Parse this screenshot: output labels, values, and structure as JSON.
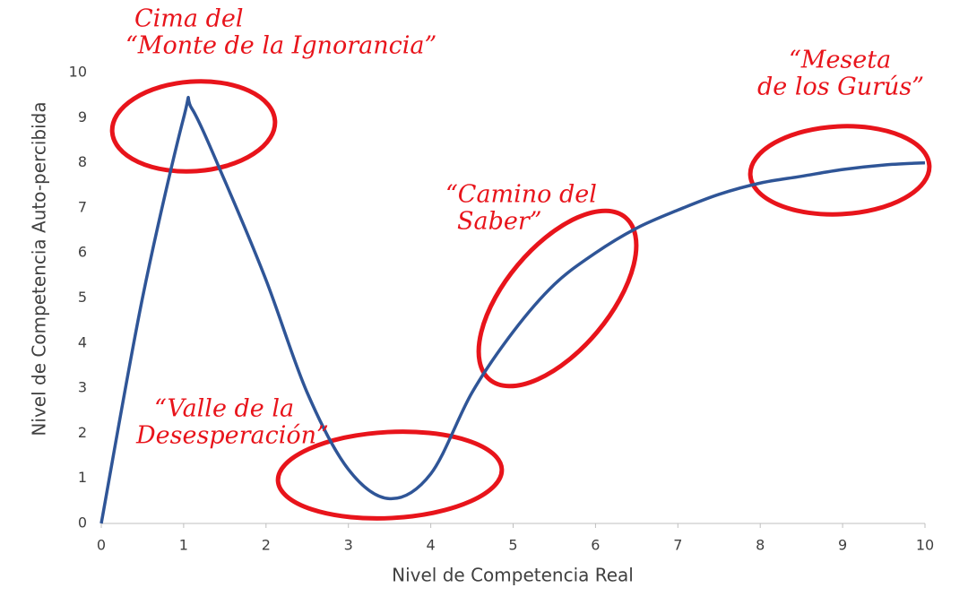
{
  "chart_data": {
    "type": "line",
    "x_label": "Nivel de Competencia Real",
    "y_label": "Nivel de Competencia Auto-percibida",
    "x": [
      0,
      0.5,
      1,
      1.1,
      1.5,
      2,
      2.5,
      3,
      3.5,
      4,
      4.5,
      5,
      5.5,
      6,
      6.5,
      7,
      7.5,
      8,
      8.5,
      9,
      9.5,
      10
    ],
    "series": [
      {
        "color": "#2f5597",
        "values": [
          0,
          5.0,
          9.0,
          9.2,
          7.6,
          5.4,
          2.9,
          1.2,
          0.55,
          1.1,
          2.9,
          4.25,
          5.3,
          6.0,
          6.55,
          6.95,
          7.3,
          7.55,
          7.7,
          7.85,
          7.95,
          8.0
        ]
      }
    ],
    "xlim": [
      0,
      10
    ],
    "ylim": [
      0,
      10
    ],
    "xticks": [
      0,
      1,
      2,
      3,
      4,
      5,
      6,
      7,
      8,
      9,
      10
    ],
    "yticks": [
      0,
      1,
      2,
      3,
      4,
      5,
      6,
      7,
      8,
      9,
      10
    ],
    "annotations": [
      [
        "Cima del",
        "“Monte de la Ignorancia”"
      ],
      [
        "“Valle de la",
        "Desesperación”"
      ],
      [
        "“Camino del",
        "Saber”"
      ],
      [
        "“Meseta",
        "de los Gurús”"
      ]
    ],
    "annotation_color": "#e8141b"
  }
}
